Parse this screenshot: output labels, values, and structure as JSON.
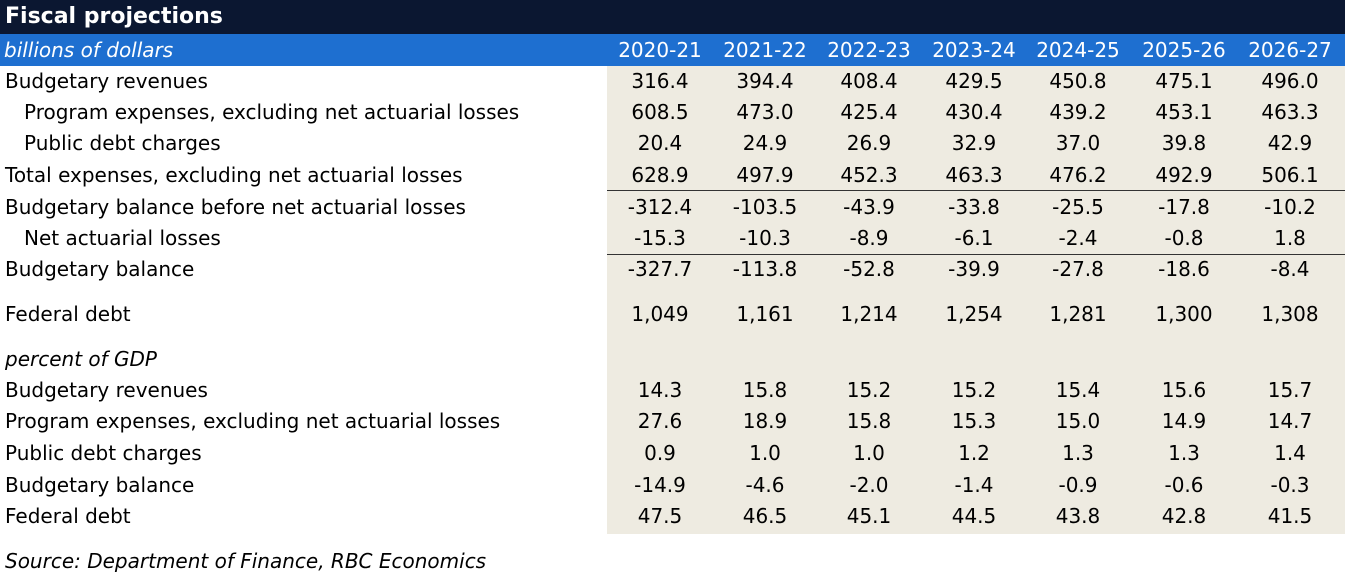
{
  "title": "Fiscal projections",
  "unit_label": "billions of dollars",
  "source": "Source: Department of Finance, RBC Economics",
  "chart_data": {
    "type": "table",
    "columns": [
      "2020-21",
      "2021-22",
      "2022-23",
      "2023-24",
      "2024-25",
      "2025-26",
      "2026-27"
    ],
    "sections": [
      {
        "heading": "",
        "rows": [
          {
            "label": "Budgetary revenues",
            "values": [
              "316.4",
              "394.4",
              "408.4",
              "429.5",
              "450.8",
              "475.1",
              "496.0"
            ]
          },
          {
            "label": "Program expenses, excluding net actuarial losses",
            "values": [
              "608.5",
              "473.0",
              "425.4",
              "430.4",
              "439.2",
              "453.1",
              "463.3"
            ]
          },
          {
            "label": "Public debt charges",
            "values": [
              "20.4",
              "24.9",
              "26.9",
              "32.9",
              "37.0",
              "39.8",
              "42.9"
            ]
          },
          {
            "label": "Total expenses, excluding net actuarial losses",
            "values": [
              "628.9",
              "497.9",
              "452.3",
              "463.3",
              "476.2",
              "492.9",
              "506.1"
            ]
          },
          {
            "label": "Budgetary balance before net actuarial losses",
            "values": [
              "-312.4",
              "-103.5",
              "-43.9",
              "-33.8",
              "-25.5",
              "-17.8",
              "-10.2"
            ]
          },
          {
            "label": "Net actuarial losses",
            "values": [
              "-15.3",
              "-10.3",
              "-8.9",
              "-6.1",
              "-2.4",
              "-0.8",
              "1.8"
            ]
          },
          {
            "label": "Budgetary balance",
            "values": [
              "-327.7",
              "-113.8",
              "-52.8",
              "-39.9",
              "-27.8",
              "-18.6",
              "-8.4"
            ]
          },
          {
            "label": "Federal debt",
            "values": [
              "1,049",
              "1,161",
              "1,214",
              "1,254",
              "1,281",
              "1,300",
              "1,308"
            ]
          }
        ]
      },
      {
        "heading": "percent of GDP",
        "rows": [
          {
            "label": "Budgetary revenues",
            "values": [
              "14.3",
              "15.8",
              "15.2",
              "15.2",
              "15.4",
              "15.6",
              "15.7"
            ]
          },
          {
            "label": "Program expenses, excluding net actuarial losses",
            "values": [
              "27.6",
              "18.9",
              "15.8",
              "15.3",
              "15.0",
              "14.9",
              "14.7"
            ]
          },
          {
            "label": "Public debt charges",
            "values": [
              "0.9",
              "1.0",
              "1.0",
              "1.2",
              "1.3",
              "1.3",
              "1.4"
            ]
          },
          {
            "label": "Budgetary balance",
            "values": [
              "-14.9",
              "-4.6",
              "-2.0",
              "-1.4",
              "-0.9",
              "-0.6",
              "-0.3"
            ]
          },
          {
            "label": "Federal debt",
            "values": [
              "47.5",
              "46.5",
              "45.1",
              "44.5",
              "43.8",
              "42.8",
              "41.5"
            ]
          }
        ]
      }
    ]
  }
}
